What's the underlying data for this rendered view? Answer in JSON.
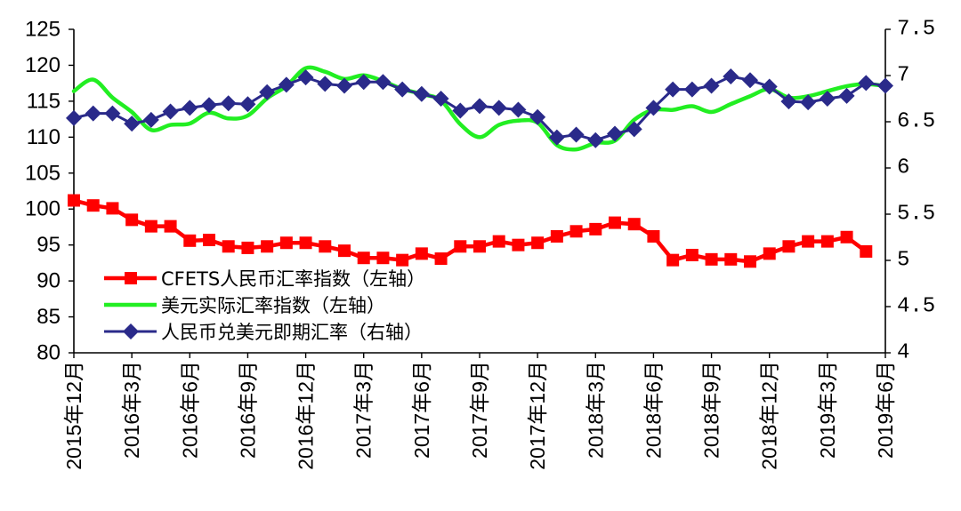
{
  "chart_data": {
    "type": "line",
    "title": "",
    "xlabel": "",
    "ylabel": "",
    "x_tick_labels": [
      "2015年12月",
      "2016年3月",
      "2016年6月",
      "2016年9月",
      "2016年12月",
      "2017年3月",
      "2017年6月",
      "2017年9月",
      "2017年12月",
      "2018年3月",
      "2018年6月",
      "2018年9月",
      "2018年12月",
      "2019年3月",
      "2019年6月"
    ],
    "months_per_tick": 3,
    "left_axis": {
      "ylim": [
        80,
        125
      ],
      "tick_labels": [
        "80",
        "85",
        "90",
        "95",
        "100",
        "105",
        "110",
        "115",
        "120",
        "125"
      ]
    },
    "right_axis": {
      "ylim": [
        4,
        7.5
      ],
      "tick_labels": [
        "4",
        "4.5",
        "5",
        "5.5",
        "6",
        "6.5",
        "7",
        "7.5"
      ]
    },
    "grid": false,
    "legend_position": "lower-left",
    "series": [
      {
        "name": "CFETS人民币汇率指数（左轴）",
        "axis": "left",
        "color": "#ff0000",
        "marker": "square",
        "values": [
          101.2,
          100.5,
          100.1,
          98.5,
          97.6,
          97.6,
          95.6,
          95.7,
          94.8,
          94.6,
          94.8,
          95.3,
          95.3,
          94.8,
          94.2,
          93.2,
          93.2,
          92.9,
          93.8,
          93.1,
          94.8,
          94.8,
          95.5,
          95.0,
          95.3,
          96.2,
          96.9,
          97.2,
          98.1,
          97.9,
          96.2,
          92.9,
          93.6,
          93.0,
          93.0,
          92.7,
          93.8,
          94.8,
          95.5,
          95.5,
          96.1,
          94.1
        ]
      },
      {
        "name": "美元实际汇率指数（左轴）",
        "axis": "left",
        "color": "#22ee22",
        "marker": "none",
        "values": [
          116.4,
          118.0,
          115.5,
          113.5,
          111.0,
          111.7,
          111.9,
          113.4,
          112.6,
          113.0,
          115.4,
          117.1,
          119.6,
          119.1,
          118.1,
          118.6,
          117.8,
          116.7,
          116.0,
          115.1,
          111.8,
          110.0,
          111.7,
          112.3,
          112.0,
          108.9,
          108.3,
          109.2,
          109.5,
          112.4,
          113.8,
          113.8,
          114.3,
          113.5,
          114.6,
          115.7,
          116.7,
          115.5,
          115.7,
          116.4,
          117.1,
          117.4,
          117.1
        ]
      },
      {
        "name": "人民币兑美元即期汇率（右轴）",
        "axis": "right",
        "color": "#2a2a8a",
        "marker": "diamond",
        "values": [
          6.54,
          6.59,
          6.59,
          6.48,
          6.52,
          6.61,
          6.65,
          6.68,
          6.7,
          6.69,
          6.82,
          6.9,
          6.98,
          6.91,
          6.89,
          6.93,
          6.93,
          6.85,
          6.8,
          6.75,
          6.62,
          6.67,
          6.65,
          6.63,
          6.55,
          6.33,
          6.36,
          6.3,
          6.37,
          6.42,
          6.65,
          6.85,
          6.85,
          6.89,
          6.99,
          6.95,
          6.88,
          6.72,
          6.71,
          6.75,
          6.78,
          6.92,
          6.89
        ]
      }
    ]
  }
}
